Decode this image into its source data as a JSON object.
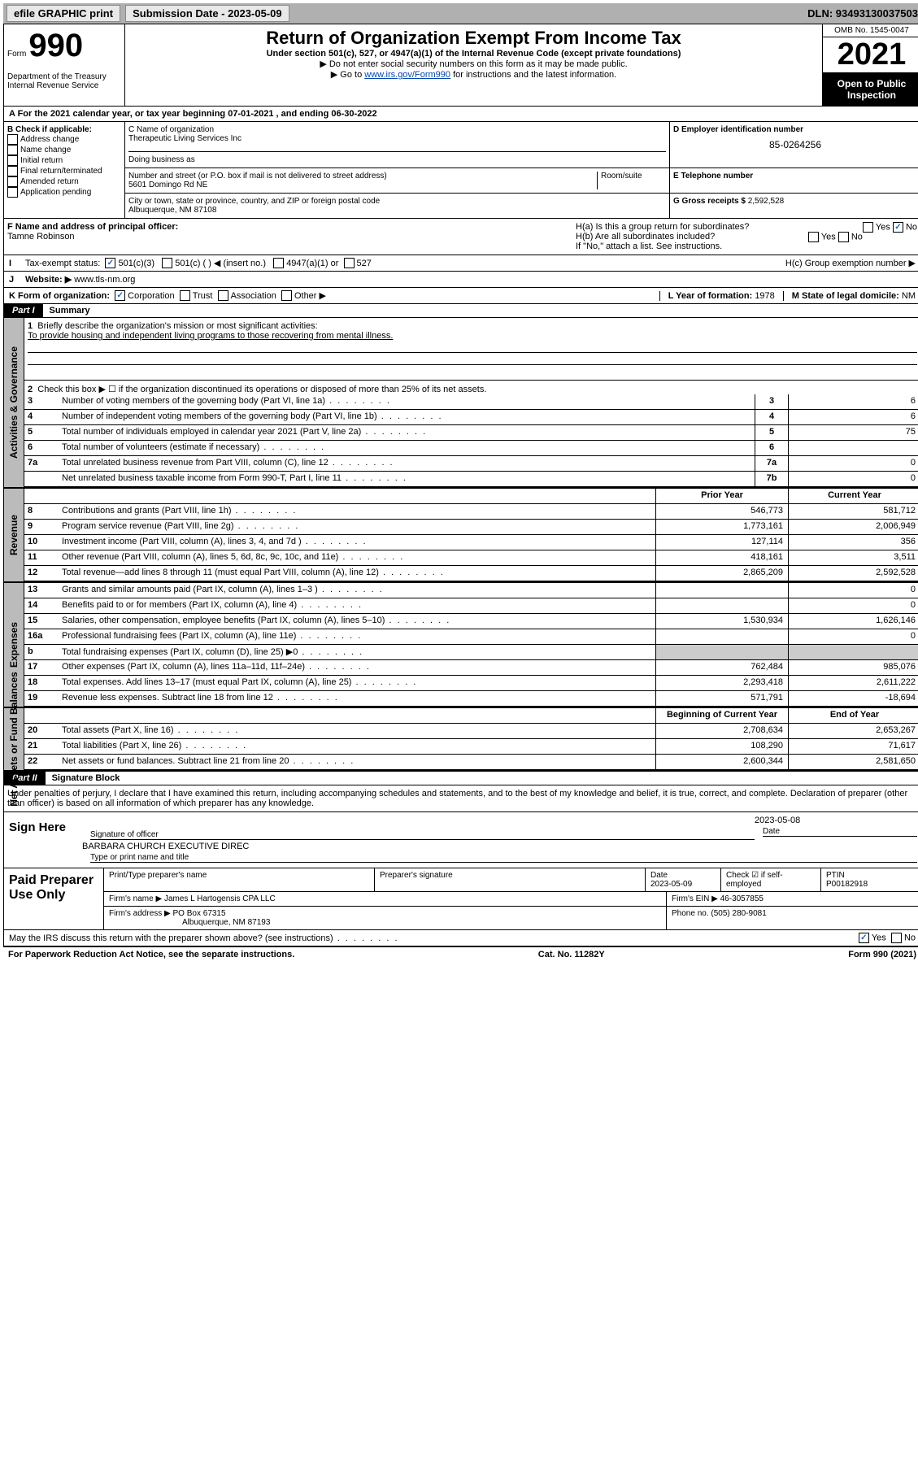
{
  "topbar": {
    "efile": "efile GRAPHIC print",
    "subdate_label": "Submission Date - 2023-05-09",
    "dln": "DLN: 93493130037503"
  },
  "header": {
    "form_word": "Form",
    "form_num": "990",
    "title": "Return of Organization Exempt From Income Tax",
    "sub": "Under section 501(c), 527, or 4947(a)(1) of the Internal Revenue Code (except private foundations)",
    "inst1": "▶ Do not enter social security numbers on this form as it may be made public.",
    "inst2_pre": "▶ Go to ",
    "inst2_link": "www.irs.gov/Form990",
    "inst2_post": " for instructions and the latest information.",
    "dept": "Department of the Treasury",
    "irs": "Internal Revenue Service",
    "omb": "OMB No. 1545-0047",
    "year": "2021",
    "open": "Open to Public Inspection"
  },
  "rowA": {
    "pre": "A For the 2021 calendar year, or tax year beginning ",
    "begin": "07-01-2021",
    "mid": " , and ending ",
    "end": "06-30-2022"
  },
  "B": {
    "label": "B Check if applicable:",
    "opts": [
      "Address change",
      "Name change",
      "Initial return",
      "Final return/terminated",
      "Amended return",
      "Application pending"
    ]
  },
  "C": {
    "name_label": "C Name of organization",
    "name": "Therapeutic Living Services Inc",
    "dba_label": "Doing business as",
    "addr_label": "Number and street (or P.O. box if mail is not delivered to street address)",
    "room_label": "Room/suite",
    "addr": "5601 Domingo Rd NE",
    "city_label": "City or town, state or province, country, and ZIP or foreign postal code",
    "city": "Albuquerque, NM  87108"
  },
  "D": {
    "label": "D Employer identification number",
    "val": "85-0264256"
  },
  "E": {
    "label": "E Telephone number"
  },
  "G": {
    "label": "G Gross receipts $",
    "val": "2,592,528"
  },
  "F": {
    "label": "F Name and address of principal officer:",
    "name": "Tamne Robinson"
  },
  "H": {
    "a": "H(a)  Is this a group return for subordinates?",
    "b": "H(b)  Are all subordinates included?",
    "note": "If \"No,\" attach a list. See instructions.",
    "c": "H(c)  Group exemption number ▶",
    "yes": "Yes",
    "no": "No"
  },
  "I": {
    "label": "Tax-exempt status:",
    "opts": [
      "501(c)(3)",
      "501(c) (  ) ◀ (insert no.)",
      "4947(a)(1) or",
      "527"
    ]
  },
  "J": {
    "label": "Website: ▶",
    "val": "www.tls-nm.org"
  },
  "K": {
    "label": "K Form of organization:",
    "opts": [
      "Corporation",
      "Trust",
      "Association",
      "Other ▶"
    ]
  },
  "L": {
    "label": "L Year of formation:",
    "val": "1978"
  },
  "M": {
    "label": "M State of legal domicile:",
    "val": "NM"
  },
  "part1": {
    "hdr": "Part I",
    "title": "Summary",
    "l1_label": "Briefly describe the organization's mission or most significant activities:",
    "l1_val": "To provide housing and independent living programs to those recovering from mental illness.",
    "l2": "Check this box ▶ ☐ if the organization discontinued its operations or disposed of more than 25% of its net assets.",
    "lines_gov": [
      {
        "n": "3",
        "t": "Number of voting members of the governing body (Part VI, line 1a)",
        "box": "3",
        "v": "6"
      },
      {
        "n": "4",
        "t": "Number of independent voting members of the governing body (Part VI, line 1b)",
        "box": "4",
        "v": "6"
      },
      {
        "n": "5",
        "t": "Total number of individuals employed in calendar year 2021 (Part V, line 2a)",
        "box": "5",
        "v": "75"
      },
      {
        "n": "6",
        "t": "Total number of volunteers (estimate if necessary)",
        "box": "6",
        "v": ""
      },
      {
        "n": "7a",
        "t": "Total unrelated business revenue from Part VIII, column (C), line 12",
        "box": "7a",
        "v": "0"
      },
      {
        "n": "",
        "t": "Net unrelated business taxable income from Form 990-T, Part I, line 11",
        "box": "7b",
        "v": "0"
      }
    ],
    "col_prior": "Prior Year",
    "col_curr": "Current Year",
    "rev": [
      {
        "n": "8",
        "t": "Contributions and grants (Part VIII, line 1h)",
        "p": "546,773",
        "c": "581,712"
      },
      {
        "n": "9",
        "t": "Program service revenue (Part VIII, line 2g)",
        "p": "1,773,161",
        "c": "2,006,949"
      },
      {
        "n": "10",
        "t": "Investment income (Part VIII, column (A), lines 3, 4, and 7d )",
        "p": "127,114",
        "c": "356"
      },
      {
        "n": "11",
        "t": "Other revenue (Part VIII, column (A), lines 5, 6d, 8c, 9c, 10c, and 11e)",
        "p": "418,161",
        "c": "3,511"
      },
      {
        "n": "12",
        "t": "Total revenue—add lines 8 through 11 (must equal Part VIII, column (A), line 12)",
        "p": "2,865,209",
        "c": "2,592,528"
      }
    ],
    "exp": [
      {
        "n": "13",
        "t": "Grants and similar amounts paid (Part IX, column (A), lines 1–3 )",
        "p": "",
        "c": "0"
      },
      {
        "n": "14",
        "t": "Benefits paid to or for members (Part IX, column (A), line 4)",
        "p": "",
        "c": "0"
      },
      {
        "n": "15",
        "t": "Salaries, other compensation, employee benefits (Part IX, column (A), lines 5–10)",
        "p": "1,530,934",
        "c": "1,626,146"
      },
      {
        "n": "16a",
        "t": "Professional fundraising fees (Part IX, column (A), line 11e)",
        "p": "",
        "c": "0"
      },
      {
        "n": "b",
        "t": "Total fundraising expenses (Part IX, column (D), line 25) ▶0",
        "p": "grey",
        "c": "grey"
      },
      {
        "n": "17",
        "t": "Other expenses (Part IX, column (A), lines 11a–11d, 11f–24e)",
        "p": "762,484",
        "c": "985,076"
      },
      {
        "n": "18",
        "t": "Total expenses. Add lines 13–17 (must equal Part IX, column (A), line 25)",
        "p": "2,293,418",
        "c": "2,611,222"
      },
      {
        "n": "19",
        "t": "Revenue less expenses. Subtract line 18 from line 12",
        "p": "571,791",
        "c": "-18,694"
      }
    ],
    "col_begin": "Beginning of Current Year",
    "col_end": "End of Year",
    "net": [
      {
        "n": "20",
        "t": "Total assets (Part X, line 16)",
        "p": "2,708,634",
        "c": "2,653,267"
      },
      {
        "n": "21",
        "t": "Total liabilities (Part X, line 26)",
        "p": "108,290",
        "c": "71,617"
      },
      {
        "n": "22",
        "t": "Net assets or fund balances. Subtract line 21 from line 20",
        "p": "2,600,344",
        "c": "2,581,650"
      }
    ],
    "tabs": {
      "gov": "Activities & Governance",
      "rev": "Revenue",
      "exp": "Expenses",
      "net": "Net Assets or Fund Balances"
    }
  },
  "part2": {
    "hdr": "Part II",
    "title": "Signature Block",
    "decl": "Under penalties of perjury, I declare that I have examined this return, including accompanying schedules and statements, and to the best of my knowledge and belief, it is true, correct, and complete. Declaration of preparer (other than officer) is based on all information of which preparer has any knowledge.",
    "sign_here": "Sign Here",
    "sig_officer": "Signature of officer",
    "sig_date": "2023-05-08",
    "date_label": "Date",
    "officer_name": "BARBARA CHURCH EXECUTIVE DIREC",
    "officer_type": "Type or print name and title",
    "paid": "Paid Preparer Use Only",
    "ptname_label": "Print/Type preparer's name",
    "psig_label": "Preparer's signature",
    "pdate_label": "Date",
    "pdate": "2023-05-09",
    "check_self": "Check ☑ if self-employed",
    "ptin_label": "PTIN",
    "ptin": "P00182918",
    "firm_name_label": "Firm's name    ▶",
    "firm_name": "James L Hartogensis CPA LLC",
    "firm_ein_label": "Firm's EIN ▶",
    "firm_ein": "46-3057855",
    "firm_addr_label": "Firm's address ▶",
    "firm_addr1": "PO Box 67315",
    "firm_addr2": "Albuquerque, NM  87193",
    "phone_label": "Phone no.",
    "phone": "(505) 280-9081",
    "discuss": "May the IRS discuss this return with the preparer shown above? (see instructions)",
    "yes": "Yes",
    "no": "No"
  },
  "footer": {
    "pra": "For Paperwork Reduction Act Notice, see the separate instructions.",
    "cat": "Cat. No. 11282Y",
    "form": "Form 990 (2021)"
  }
}
